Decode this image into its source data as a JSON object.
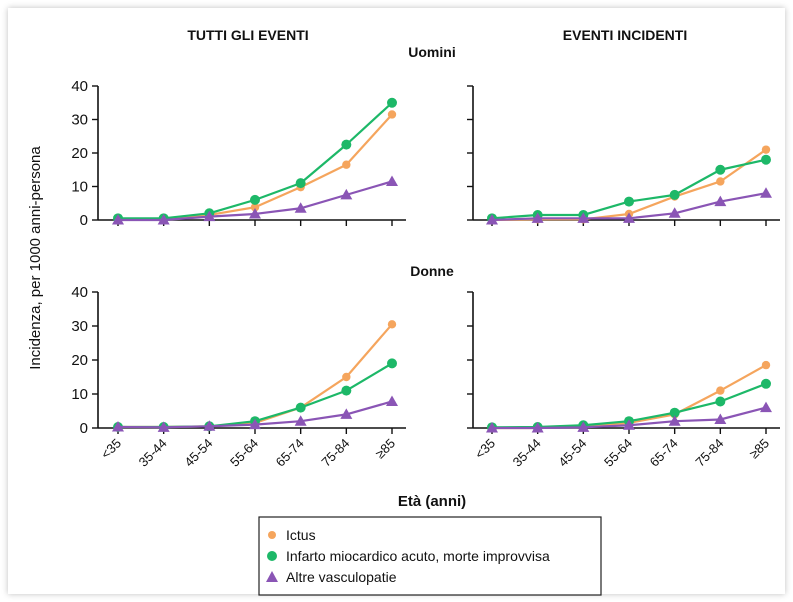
{
  "chart_data": {
    "type": "line",
    "col_titles": [
      "TUTTI GLI EVENTI",
      "EVENTI INCIDENTI"
    ],
    "row_titles": [
      "Uomini",
      "Donne"
    ],
    "ylabel": "Incidenza, per 1000 anni-persona",
    "xlabel": "Età (anni)",
    "categories": [
      "<35",
      "35-44",
      "45-54",
      "55-64",
      "65-74",
      "75-84",
      "≥85"
    ],
    "ylim": [
      0,
      40
    ],
    "yticks": [
      "0",
      "10",
      "20",
      "30",
      "40"
    ],
    "legend_position": "bottom",
    "series_names": [
      "Ictus",
      "Infarto miocardico acuto, morte improvvisa",
      "Altre vasculopatie"
    ],
    "series_colors": [
      "#f5a55d",
      "#1db868",
      "#8a55b5"
    ],
    "series_markers": [
      "circle",
      "circle",
      "triangle"
    ],
    "panels": [
      {
        "row": 0,
        "col": 0,
        "series": [
          {
            "values": [
              0.2,
              0.3,
              1.5,
              3.8,
              9.8,
              16.5,
              31.5
            ]
          },
          {
            "values": [
              0.5,
              0.5,
              2.0,
              6.0,
              11.0,
              22.5,
              35.0
            ]
          },
          {
            "values": [
              0,
              0,
              1.0,
              1.8,
              3.5,
              7.5,
              11.5
            ]
          }
        ]
      },
      {
        "row": 0,
        "col": 1,
        "series": [
          {
            "values": [
              0,
              0.2,
              0.2,
              1.8,
              7.0,
              11.5,
              21.0
            ]
          },
          {
            "values": [
              0.5,
              1.5,
              1.5,
              5.5,
              7.5,
              15.0,
              18.0
            ]
          },
          {
            "values": [
              0,
              0.5,
              0.5,
              0.5,
              2.0,
              5.5,
              8.0
            ]
          }
        ]
      },
      {
        "row": 1,
        "col": 0,
        "series": [
          {
            "values": [
              0.3,
              0.3,
              0.5,
              1.5,
              6.0,
              15.0,
              30.5
            ]
          },
          {
            "values": [
              0.3,
              0.3,
              0.5,
              2.0,
              6.0,
              11.0,
              19.0
            ]
          },
          {
            "values": [
              0.3,
              0.2,
              0.5,
              1.0,
              2.0,
              4.0,
              7.8
            ]
          }
        ]
      },
      {
        "row": 1,
        "col": 1,
        "series": [
          {
            "values": [
              0,
              0,
              0.5,
              1.5,
              4.0,
              11.0,
              18.5
            ]
          },
          {
            "values": [
              0.2,
              0.3,
              0.8,
              2.0,
              4.5,
              7.8,
              13.0
            ]
          },
          {
            "values": [
              0,
              0,
              0.2,
              0.8,
              2.0,
              2.5,
              6.0
            ]
          }
        ]
      }
    ]
  }
}
